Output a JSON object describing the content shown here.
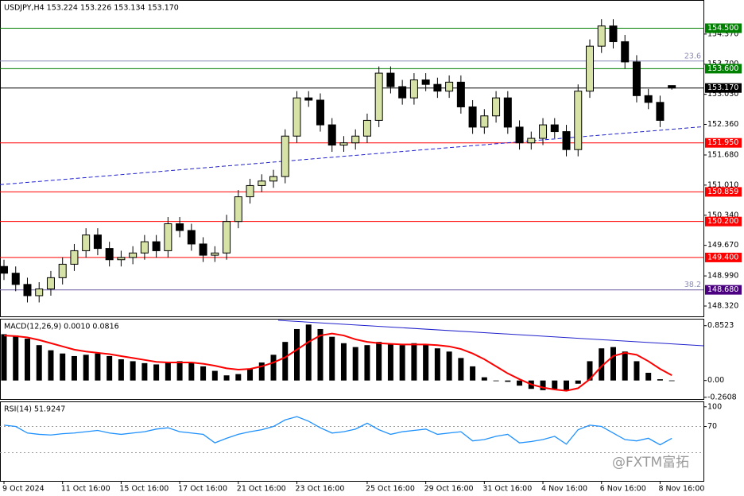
{
  "chart_data": [
    {
      "type": "candlestick",
      "title": "USDJPY,H4  153.224 153.226 153.134 153.170",
      "categories": [
        "9 Oct 2024",
        null,
        null,
        null,
        null,
        "11 Oct 16:00",
        null,
        null,
        null,
        null,
        "15 Oct 16:00",
        null,
        null,
        null,
        null,
        "17 Oct 16:00",
        null,
        null,
        null,
        null,
        "21 Oct 16:00",
        null,
        null,
        null,
        null,
        "23 Oct 16:00",
        null,
        null,
        null,
        null,
        null,
        "25 Oct 16:00",
        null,
        null,
        null,
        null,
        "29 Oct 16:00",
        null,
        null,
        null,
        null,
        "31 Oct 16:00",
        null,
        null,
        null,
        null,
        "4 Nov 16:00",
        null,
        null,
        null,
        null,
        "6 Nov 16:00",
        null,
        null,
        null,
        null,
        "8 Nov 16:00",
        null
      ],
      "open": [
        149.2,
        149.05,
        148.8,
        148.55,
        148.7,
        148.95,
        149.25,
        149.55,
        149.9,
        149.6,
        149.35,
        149.4,
        149.5,
        149.75,
        149.55,
        150.15,
        150.0,
        149.7,
        149.45,
        149.5,
        150.2,
        150.75,
        151.0,
        151.1,
        151.2,
        152.1,
        152.95,
        152.9,
        152.35,
        151.9,
        151.95,
        152.1,
        152.45,
        153.5,
        153.2,
        152.95,
        153.35,
        153.25,
        153.1,
        153.3,
        152.75,
        152.3,
        152.55,
        152.95,
        152.3,
        151.95,
        152.05,
        152.35,
        152.2,
        151.8,
        153.1,
        154.1,
        154.55,
        154.2,
        153.75,
        153.0,
        152.85,
        153.224
      ],
      "high": [
        149.35,
        149.2,
        148.95,
        148.85,
        149.1,
        149.4,
        149.7,
        150.05,
        150.05,
        149.75,
        149.55,
        149.65,
        149.9,
        149.9,
        150.3,
        150.3,
        150.15,
        149.85,
        149.65,
        150.35,
        150.9,
        151.15,
        151.25,
        151.35,
        152.25,
        153.1,
        153.1,
        153.05,
        152.5,
        152.1,
        152.25,
        152.6,
        153.65,
        153.65,
        153.35,
        153.5,
        153.5,
        153.4,
        153.45,
        153.45,
        152.9,
        152.7,
        153.1,
        153.1,
        152.45,
        152.2,
        152.5,
        152.5,
        152.35,
        153.25,
        154.25,
        154.7,
        154.7,
        154.35,
        153.9,
        153.15,
        153.0,
        153.226
      ],
      "low": [
        148.9,
        148.65,
        148.4,
        148.4,
        148.55,
        148.8,
        149.1,
        149.4,
        149.45,
        149.2,
        149.2,
        149.25,
        149.35,
        149.4,
        149.4,
        149.85,
        149.55,
        149.3,
        149.3,
        149.35,
        150.05,
        150.6,
        150.85,
        150.95,
        151.05,
        151.95,
        152.75,
        152.2,
        151.75,
        151.75,
        151.8,
        151.95,
        152.3,
        153.05,
        152.8,
        152.8,
        153.1,
        152.95,
        152.95,
        152.6,
        152.15,
        152.15,
        152.4,
        152.15,
        151.8,
        151.8,
        151.9,
        152.05,
        151.65,
        151.65,
        152.95,
        153.95,
        154.05,
        153.6,
        152.85,
        152.7,
        152.3,
        153.134
      ],
      "close": [
        149.05,
        148.8,
        148.55,
        148.7,
        148.95,
        149.25,
        149.55,
        149.9,
        149.6,
        149.35,
        149.4,
        149.5,
        149.75,
        149.55,
        150.15,
        150.0,
        149.7,
        149.45,
        149.5,
        150.2,
        150.75,
        151.0,
        151.1,
        151.2,
        152.1,
        152.95,
        152.9,
        152.35,
        151.9,
        151.95,
        152.1,
        152.45,
        153.5,
        153.2,
        152.95,
        153.35,
        153.25,
        153.1,
        153.3,
        152.75,
        152.3,
        152.55,
        152.95,
        152.3,
        151.95,
        152.05,
        152.35,
        152.2,
        151.8,
        153.1,
        154.1,
        154.55,
        154.2,
        153.75,
        153.0,
        152.85,
        152.45,
        153.17
      ],
      "bull_color": "#d6e2a6",
      "bear_color": "#000000",
      "ylim": [
        148.09,
        155.11
      ],
      "yticks": [
        {
          "value": 154.37,
          "label": "154.370"
        },
        {
          "value": 153.7,
          "label": "153.700"
        },
        {
          "value": 153.03,
          "label": "153.030"
        },
        {
          "value": 152.36,
          "label": "152.360"
        },
        {
          "value": 151.68,
          "label": "151.680"
        },
        {
          "value": 151.01,
          "label": "151.010"
        },
        {
          "value": 150.34,
          "label": "150.340"
        },
        {
          "value": 149.67,
          "label": "149.670"
        },
        {
          "value": 148.99,
          "label": "148.990"
        },
        {
          "value": 148.32,
          "label": "148.320"
        }
      ],
      "levels": [
        {
          "value": 154.5,
          "label": "154.500",
          "color": "#008000"
        },
        {
          "value": 153.6,
          "label": "153.600",
          "color": "#008000"
        },
        {
          "value": 153.17,
          "label": "153.170",
          "color": "#000000"
        },
        {
          "value": 151.95,
          "label": "151.950",
          "color": "#ff0000"
        },
        {
          "value": 150.859,
          "label": "150.859",
          "color": "#ff0000"
        },
        {
          "value": 150.2,
          "label": "150.200",
          "color": "#ff0000"
        },
        {
          "value": 149.4,
          "label": "149.400",
          "color": "#ff0000"
        },
        {
          "value": 148.68,
          "label": "148.680",
          "color": "#4b0082"
        }
      ],
      "fib_levels": [
        {
          "value": 153.77,
          "label": "23.6"
        },
        {
          "value": 148.68,
          "label": "38.2"
        }
      ],
      "fib_color": "#8a8ab8",
      "trendline": {
        "x": [
          -0.34,
          59.7
        ],
        "values": [
          151.02,
          152.31
        ],
        "color": "#2020cc"
      }
    },
    {
      "type": "bar",
      "title": "MACD(12,26,9) 0.0010 0.0816",
      "values": [
        0.72,
        0.7,
        0.65,
        0.55,
        0.47,
        0.42,
        0.38,
        0.4,
        0.42,
        0.38,
        0.33,
        0.3,
        0.27,
        0.25,
        0.28,
        0.3,
        0.27,
        0.22,
        0.15,
        0.08,
        0.1,
        0.18,
        0.28,
        0.4,
        0.6,
        0.8,
        0.87,
        0.8,
        0.68,
        0.58,
        0.52,
        0.55,
        0.6,
        0.56,
        0.55,
        0.58,
        0.56,
        0.5,
        0.45,
        0.35,
        0.22,
        0.05,
        0.0,
        -0.02,
        -0.08,
        -0.13,
        -0.15,
        -0.13,
        -0.16,
        -0.05,
        0.3,
        0.5,
        0.52,
        0.45,
        0.3,
        0.12,
        0.02,
        0.001
      ],
      "color": "#000000",
      "signal": {
        "values": [
          0.7,
          0.69,
          0.67,
          0.63,
          0.58,
          0.53,
          0.48,
          0.45,
          0.43,
          0.41,
          0.38,
          0.35,
          0.32,
          0.29,
          0.28,
          0.28,
          0.28,
          0.26,
          0.23,
          0.19,
          0.17,
          0.18,
          0.22,
          0.28,
          0.36,
          0.48,
          0.6,
          0.7,
          0.73,
          0.7,
          0.64,
          0.6,
          0.58,
          0.57,
          0.56,
          0.56,
          0.56,
          0.55,
          0.53,
          0.49,
          0.42,
          0.33,
          0.22,
          0.11,
          0.02,
          -0.06,
          -0.11,
          -0.14,
          -0.16,
          -0.12,
          0.02,
          0.22,
          0.38,
          0.43,
          0.4,
          0.3,
          0.18,
          0.0816
        ],
        "color": "#ff0000"
      },
      "ylim": [
        -0.288,
        0.948
      ],
      "yticks": [
        0.8523,
        {
          "value": 0,
          "label": "0.00"
        },
        -0.2608
      ],
      "trendline": {
        "x": [
          23.4,
          59.7
        ],
        "values": [
          0.936,
          0.54
        ],
        "color": "#2020cc"
      }
    },
    {
      "type": "line",
      "title": "RSI(14) 51.9247",
      "values": [
        72,
        70,
        60,
        58,
        57,
        59,
        60,
        62,
        64,
        60,
        58,
        60,
        62,
        66,
        68,
        62,
        60,
        58,
        45,
        52,
        58,
        62,
        65,
        70,
        80,
        85,
        78,
        68,
        60,
        62,
        66,
        75,
        65,
        58,
        62,
        64,
        66,
        58,
        60,
        62,
        48,
        50,
        55,
        58,
        45,
        47,
        50,
        55,
        43,
        65,
        72,
        70,
        60,
        50,
        48,
        52,
        42,
        51.9247
      ],
      "color": "#1e90ff",
      "ylim": [
        -13,
        107
      ],
      "yticks": [
        100,
        70
      ],
      "levels": [
        70,
        30
      ]
    }
  ],
  "watermark": "@FXTM富拓"
}
